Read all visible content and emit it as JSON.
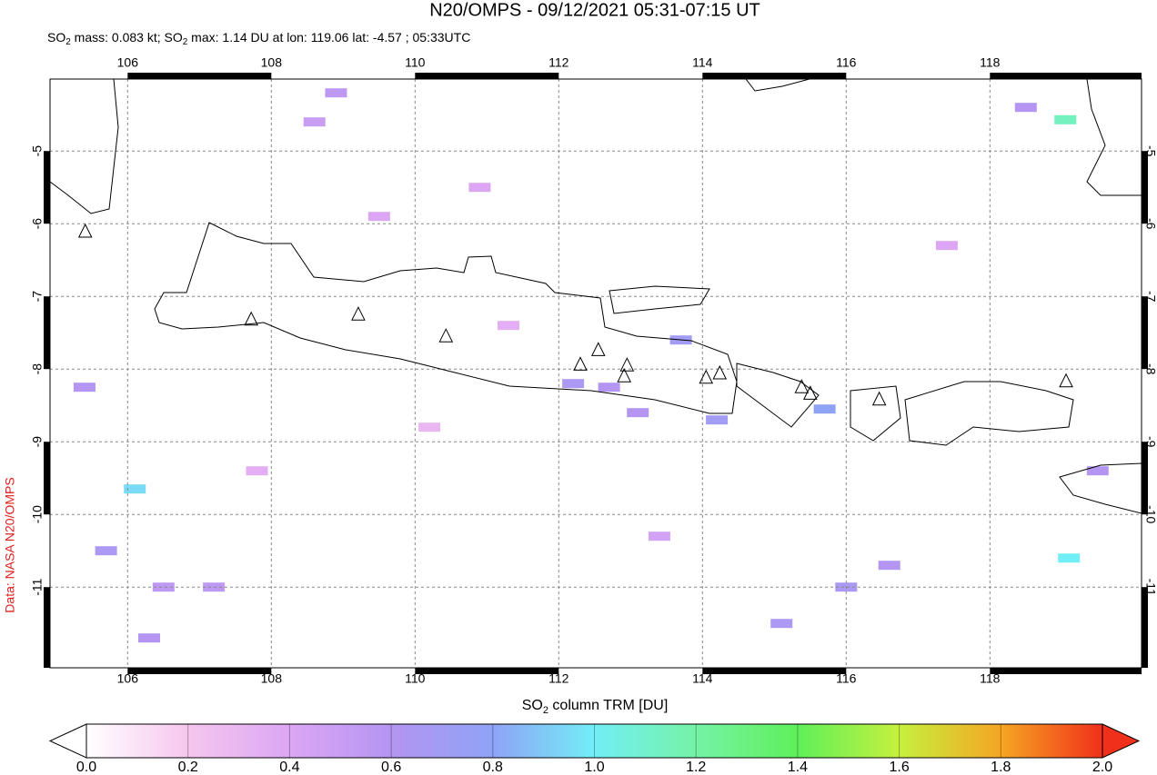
{
  "chart_data": {
    "type": "map",
    "title": "N20/OMPS - 09/12/2021 05:31-07:15 UT",
    "subtitle": [
      "SO",
      "2",
      " mass: 0.083 kt; SO",
      "2",
      " max: 1.14 DU at lon: 119.06 lat: -4.57 ; 05:33UTC"
    ],
    "credit": "Data: NASA N20/OMPS",
    "colorbar_label": [
      "SO",
      "2",
      " column TRM [DU]"
    ],
    "xlim": [
      104.92,
      120.11
    ],
    "ylim": [
      -12.11,
      -4.01
    ],
    "xticks": [
      106,
      108,
      110,
      112,
      114,
      116,
      118
    ],
    "yticks": [
      -5,
      -6,
      -7,
      -8,
      -9,
      -10,
      -11
    ],
    "grid": true,
    "clim": [
      0,
      2
    ],
    "colormap": [
      "#ffffff",
      "#f6c6ee",
      "#dca6f4",
      "#b495f2",
      "#8fa3f6",
      "#72eef6",
      "#74f3a6",
      "#5ff05a",
      "#c6f03e",
      "#f5a623",
      "#f0301a"
    ],
    "cticks": [
      {
        "value": 0,
        "label": "0.0"
      },
      {
        "value": 0.2,
        "label": "0.2"
      },
      {
        "value": 0.4,
        "label": "0.4"
      },
      {
        "value": 0.6,
        "label": "0.6"
      },
      {
        "value": 0.8,
        "label": "0.8"
      },
      {
        "value": 1,
        "label": "1.0"
      },
      {
        "value": 1.2,
        "label": "1.2"
      },
      {
        "value": 1.4,
        "label": "1.4"
      },
      {
        "value": 1.6,
        "label": "1.6"
      },
      {
        "value": 1.8,
        "label": "1.8"
      },
      {
        "value": 2,
        "label": "2.0"
      }
    ],
    "pixels": {
      "lon": [
        106.1,
        105.7,
        106.5,
        107.2,
        106.3,
        105.4,
        119.05,
        119.1,
        115.7,
        114.2,
        113.7,
        112.7,
        112.2,
        113.1,
        108.9,
        108.6,
        115.1,
        116.6,
        116.0,
        118.5,
        119.5,
        110.9,
        109.5,
        107.8,
        111.3,
        117.4,
        113.4,
        110.2
      ],
      "lat": [
        -9.65,
        -10.5,
        -11.0,
        -11.0,
        -11.7,
        -8.25,
        -4.57,
        -10.6,
        -8.55,
        -8.7,
        -7.6,
        -8.25,
        -8.2,
        -8.6,
        -4.2,
        -4.6,
        -11.5,
        -10.7,
        -11.0,
        -4.4,
        -9.4,
        -5.5,
        -5.9,
        -9.4,
        -7.4,
        -6.3,
        -10.3,
        -8.8
      ],
      "values": [
        0.95,
        0.65,
        0.55,
        0.55,
        0.6,
        0.6,
        1.14,
        1.0,
        0.8,
        0.7,
        0.7,
        0.6,
        0.65,
        0.6,
        0.55,
        0.5,
        0.65,
        0.6,
        0.65,
        0.6,
        0.6,
        0.4,
        0.4,
        0.35,
        0.35,
        0.4,
        0.45,
        0.3
      ]
    },
    "volcanoes": {
      "lon": [
        105.41,
        107.72,
        109.21,
        110.43,
        112.3,
        112.55,
        112.95,
        112.91,
        114.05,
        114.24,
        115.38,
        115.5,
        116.46,
        119.06
      ],
      "lat": [
        -6.11,
        -7.32,
        -7.25,
        -7.55,
        -7.94,
        -7.74,
        -7.95,
        -8.1,
        -8.12,
        -8.06,
        -8.25,
        -8.34,
        -8.42,
        -8.17
      ]
    }
  }
}
